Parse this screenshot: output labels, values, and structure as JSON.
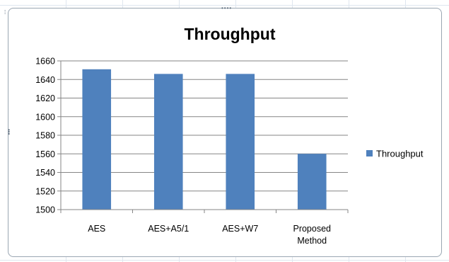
{
  "chart_data": {
    "type": "bar",
    "title": "Throughput",
    "categories": [
      "AES",
      "AES+A5/1",
      "AES+W7",
      "Proposed Method"
    ],
    "series": [
      {
        "name": "Throughput",
        "color": "#4f81bd",
        "values": [
          1651,
          1646,
          1646,
          1560
        ]
      }
    ],
    "xlabel": "",
    "ylabel": "",
    "ylim": [
      1500,
      1660
    ],
    "yticks": [
      1500,
      1520,
      1540,
      1560,
      1580,
      1600,
      1620,
      1640,
      1660
    ],
    "grid": true,
    "legend_position": "right"
  }
}
